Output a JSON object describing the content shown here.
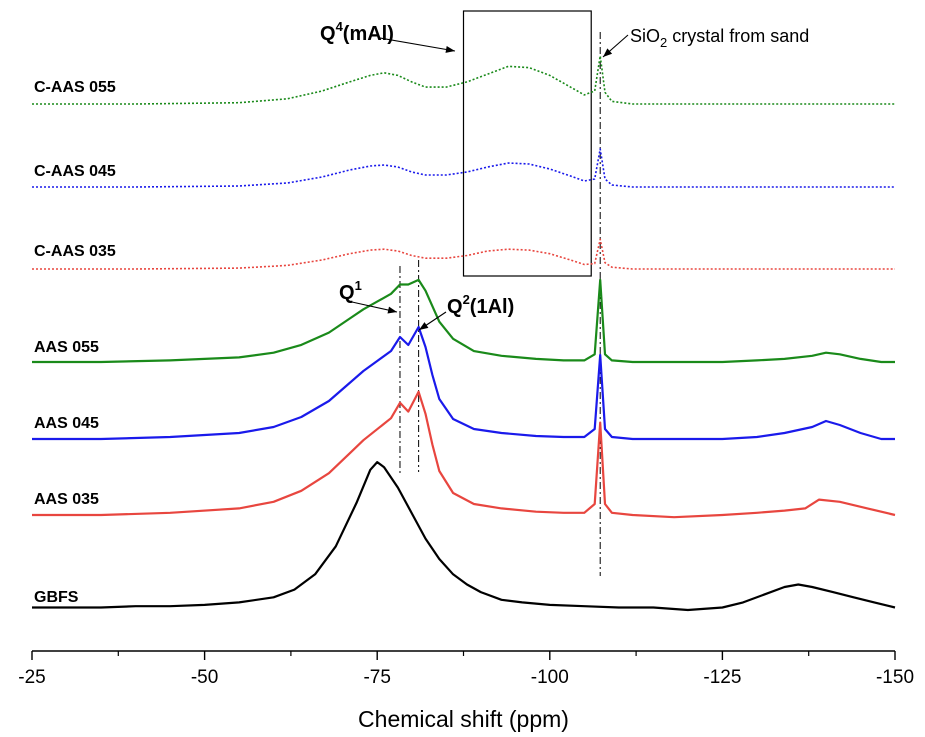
{
  "chart_data": {
    "type": "line",
    "title": "",
    "xlabel": "Chemical shift (ppm)",
    "ylabel": "",
    "xlim": [
      -25,
      -150
    ],
    "x_reversed": true,
    "xticks": [
      -25,
      -50,
      -75,
      -100,
      -125,
      -150
    ],
    "xtick_labels": [
      "-25",
      "-50",
      "-75",
      "-100",
      "-125",
      "-150"
    ],
    "y_axis_shown": false,
    "grid": false,
    "legend": "none",
    "series": [
      {
        "name": "GBFS",
        "color": "#000000",
        "dashed": false,
        "x": [
          -25,
          -30,
          -35,
          -40,
          -45,
          -50,
          -55,
          -60,
          -63,
          -66,
          -69,
          -72,
          -74,
          -75,
          -76,
          -78,
          -80,
          -82,
          -84,
          -86,
          -88,
          -90,
          -93,
          -96,
          -100,
          -105,
          -110,
          -115,
          -120,
          -125,
          -128,
          -131,
          -134,
          -136,
          -138,
          -141,
          -144,
          -147,
          -150
        ],
        "y": [
          0.01,
          0.01,
          0.01,
          0.015,
          0.015,
          0.02,
          0.03,
          0.05,
          0.08,
          0.14,
          0.25,
          0.42,
          0.55,
          0.58,
          0.56,
          0.48,
          0.38,
          0.28,
          0.2,
          0.14,
          0.1,
          0.07,
          0.04,
          0.03,
          0.02,
          0.015,
          0.01,
          0.01,
          0.0,
          0.01,
          0.03,
          0.06,
          0.09,
          0.1,
          0.09,
          0.07,
          0.05,
          0.03,
          0.01
        ]
      },
      {
        "name": "AAS 035",
        "color": "#e8463f",
        "dashed": false,
        "x": [
          -25,
          -35,
          -45,
          -55,
          -60,
          -64,
          -68,
          -71,
          -73,
          -75,
          -77,
          -78.3,
          -79.5,
          -81,
          -82,
          -83,
          -84,
          -86,
          -89,
          -93,
          -98,
          -102,
          -105,
          -106.5,
          -107.3,
          -108,
          -109,
          -112,
          -118,
          -125,
          -130,
          -134,
          -137,
          -139,
          -142,
          -146,
          -150
        ],
        "y": [
          0.0,
          0.0,
          0.01,
          0.03,
          0.06,
          0.11,
          0.19,
          0.28,
          0.34,
          0.39,
          0.44,
          0.51,
          0.47,
          0.56,
          0.46,
          0.32,
          0.2,
          0.1,
          0.05,
          0.03,
          0.015,
          0.01,
          0.01,
          0.05,
          0.42,
          0.05,
          0.01,
          0.0,
          -0.01,
          0.0,
          0.01,
          0.02,
          0.03,
          0.07,
          0.06,
          0.03,
          0.0
        ]
      },
      {
        "name": "AAS 045",
        "color": "#1a1aeb",
        "dashed": false,
        "x": [
          -25,
          -35,
          -45,
          -55,
          -60,
          -64,
          -68,
          -71,
          -73,
          -75,
          -77,
          -78.3,
          -79.5,
          -81,
          -82,
          -83,
          -84,
          -86,
          -89,
          -93,
          -98,
          -102,
          -105,
          -106.5,
          -107.3,
          -108,
          -109,
          -112,
          -118,
          -125,
          -130,
          -134,
          -138,
          -140,
          -142,
          -145,
          -148,
          -150
        ],
        "y": [
          0.0,
          0.0,
          0.01,
          0.03,
          0.06,
          0.11,
          0.19,
          0.28,
          0.34,
          0.39,
          0.44,
          0.51,
          0.47,
          0.56,
          0.46,
          0.32,
          0.2,
          0.1,
          0.05,
          0.03,
          0.015,
          0.01,
          0.01,
          0.05,
          0.42,
          0.05,
          0.01,
          0.0,
          0.0,
          0.0,
          0.01,
          0.03,
          0.06,
          0.09,
          0.07,
          0.03,
          0.0,
          0.0
        ]
      },
      {
        "name": "AAS 055",
        "color": "#1a8a1a",
        "dashed": false,
        "x": [
          -25,
          -35,
          -45,
          -55,
          -60,
          -64,
          -68,
          -71,
          -73,
          -75,
          -77,
          -78.3,
          -79.5,
          -81,
          -82,
          -83,
          -84,
          -86,
          -89,
          -93,
          -98,
          -102,
          -105,
          -106.5,
          -107.3,
          -108,
          -109,
          -112,
          -118,
          -125,
          -130,
          -134,
          -138,
          -140,
          -142,
          -145,
          -148,
          -150
        ],
        "y": [
          0.0,
          0.0,
          0.01,
          0.03,
          0.06,
          0.11,
          0.19,
          0.28,
          0.34,
          0.39,
          0.44,
          0.5,
          0.5,
          0.53,
          0.46,
          0.36,
          0.26,
          0.15,
          0.07,
          0.04,
          0.02,
          0.01,
          0.01,
          0.05,
          0.53,
          0.05,
          0.01,
          0.0,
          0.0,
          0.0,
          0.01,
          0.02,
          0.04,
          0.06,
          0.05,
          0.02,
          0.0,
          0.0
        ]
      },
      {
        "name": "C-AAS 035",
        "color": "#e8463f",
        "dashed": true,
        "x": [
          -25,
          -40,
          -55,
          -62,
          -67,
          -71,
          -74,
          -76,
          -78,
          -80,
          -82,
          -85,
          -88,
          -91,
          -94,
          -97,
          -100,
          -103,
          -105,
          -106.5,
          -107.3,
          -108,
          -109,
          -112,
          -120,
          -130,
          -140,
          -150
        ],
        "y": [
          0.0,
          0.0,
          0.01,
          0.04,
          0.1,
          0.17,
          0.21,
          0.22,
          0.2,
          0.15,
          0.12,
          0.12,
          0.15,
          0.2,
          0.22,
          0.21,
          0.17,
          0.1,
          0.05,
          0.06,
          0.33,
          0.07,
          0.02,
          0.0,
          0.0,
          0.0,
          0.0,
          0.0
        ]
      },
      {
        "name": "C-AAS 045",
        "color": "#1a1aeb",
        "dashed": true,
        "x": [
          -25,
          -40,
          -55,
          -62,
          -67,
          -71,
          -74,
          -76,
          -78,
          -80,
          -82,
          -85,
          -88,
          -91,
          -94,
          -97,
          -100,
          -103,
          -105,
          -106.5,
          -107.3,
          -108,
          -109,
          -112,
          -120,
          -130,
          -140,
          -150
        ],
        "y": [
          0.0,
          0.0,
          0.01,
          0.04,
          0.1,
          0.17,
          0.21,
          0.22,
          0.2,
          0.15,
          0.12,
          0.12,
          0.15,
          0.2,
          0.24,
          0.23,
          0.18,
          0.11,
          0.06,
          0.08,
          0.38,
          0.08,
          0.02,
          0.0,
          0.0,
          0.0,
          0.0,
          0.0
        ]
      },
      {
        "name": "C-AAS 055",
        "color": "#1a8a1a",
        "dashed": true,
        "x": [
          -25,
          -40,
          -55,
          -62,
          -67,
          -71,
          -74,
          -76,
          -78,
          -80,
          -82,
          -85,
          -88,
          -91,
          -94,
          -97,
          -100,
          -103,
          -105,
          -106.5,
          -107.3,
          -108,
          -109,
          -112,
          -120,
          -130,
          -140,
          -150
        ],
        "y": [
          0.0,
          0.0,
          0.01,
          0.04,
          0.1,
          0.17,
          0.22,
          0.24,
          0.22,
          0.17,
          0.13,
          0.13,
          0.17,
          0.23,
          0.29,
          0.28,
          0.22,
          0.13,
          0.07,
          0.1,
          0.37,
          0.09,
          0.02,
          0.0,
          0.0,
          0.0,
          0.0,
          0.0
        ]
      }
    ],
    "annotations": [
      {
        "id": "q4",
        "text": "Q",
        "sup": "4",
        "tail": "(mAl)",
        "bold": true
      },
      {
        "id": "sio2",
        "text": "SiO",
        "sub": "2",
        "tail": " crystal from sand",
        "bold": false
      },
      {
        "id": "q1",
        "text": "Q",
        "sup": "1",
        "tail": "",
        "bold": true
      },
      {
        "id": "q2",
        "text": "Q",
        "sup": "2",
        "tail": "(1Al)",
        "bold": true
      }
    ],
    "reference_lines_ppm": [
      -78.3,
      -81,
      -107.3
    ],
    "highlight_box_ppm": [
      -87.5,
      -106
    ]
  }
}
